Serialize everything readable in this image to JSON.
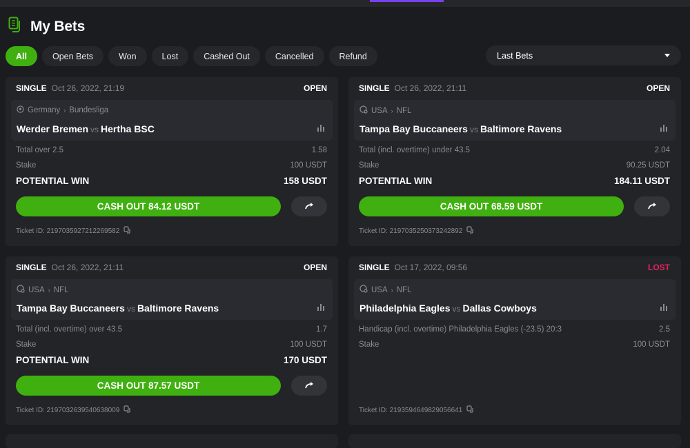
{
  "header": {
    "title": "My Bets",
    "icon": "bets-document-icon"
  },
  "filters": [
    {
      "label": "All",
      "active": true
    },
    {
      "label": "Open Bets"
    },
    {
      "label": "Won"
    },
    {
      "label": "Lost"
    },
    {
      "label": "Cashed Out"
    },
    {
      "label": "Cancelled"
    },
    {
      "label": "Refund"
    }
  ],
  "sort": {
    "selected": "Last Bets"
  },
  "colors": {
    "accent": "#40b010",
    "lost": "#e0245e",
    "open": "#ffffff",
    "topbar_accent": "#7b3ff2"
  },
  "bets": [
    {
      "type": "SINGLE",
      "date": "Oct 26, 2022, 21:19",
      "status": "OPEN",
      "sport_icon": "soccer-ball-icon",
      "country": "Germany",
      "league": "Bundesliga",
      "home": "Werder Bremen",
      "vs": "vs",
      "away": "Hertha BSC",
      "market": "Total over 2.5",
      "odds": "1.58",
      "stake_label": "Stake",
      "stake": "100 USDT",
      "win_label": "POTENTIAL WIN",
      "win": "158 USDT",
      "cashout": "CASH OUT 84.12 USDT",
      "ticket": "Ticket ID: 2197035927212269582"
    },
    {
      "type": "SINGLE",
      "date": "Oct 26, 2022, 21:11",
      "status": "OPEN",
      "sport_icon": "american-football-icon",
      "country": "USA",
      "league": "NFL",
      "home": "Tampa Bay Buccaneers",
      "vs": "vs",
      "away": "Baltimore Ravens",
      "market": "Total (incl. overtime) under 43.5",
      "odds": "2.04",
      "stake_label": "Stake",
      "stake": "90.25 USDT",
      "win_label": "POTENTIAL WIN",
      "win": "184.11 USDT",
      "cashout": "CASH OUT 68.59 USDT",
      "ticket": "Ticket ID: 2197035250373242892"
    },
    {
      "type": "SINGLE",
      "date": "Oct 26, 2022, 21:11",
      "status": "OPEN",
      "sport_icon": "american-football-icon",
      "country": "USA",
      "league": "NFL",
      "home": "Tampa Bay Buccaneers",
      "vs": "vs",
      "away": "Baltimore Ravens",
      "market": "Total (incl. overtime) over 43.5",
      "odds": "1.7",
      "stake_label": "Stake",
      "stake": "100 USDT",
      "win_label": "POTENTIAL WIN",
      "win": "170 USDT",
      "cashout": "CASH OUT 87.57 USDT",
      "ticket": "Ticket ID: 2197032639540638009"
    },
    {
      "type": "SINGLE",
      "date": "Oct 17, 2022, 09:56",
      "status": "LOST",
      "sport_icon": "american-football-icon",
      "country": "USA",
      "league": "NFL",
      "home": "Philadelphia Eagles",
      "vs": "vs",
      "away": "Dallas Cowboys",
      "market": "Handicap (incl. overtime) Philadelphia Eagles (-23.5)   20:3",
      "odds": "2.5",
      "stake_label": "Stake",
      "stake": "100 USDT",
      "ticket": "Ticket ID: 2193594649829056641"
    }
  ]
}
